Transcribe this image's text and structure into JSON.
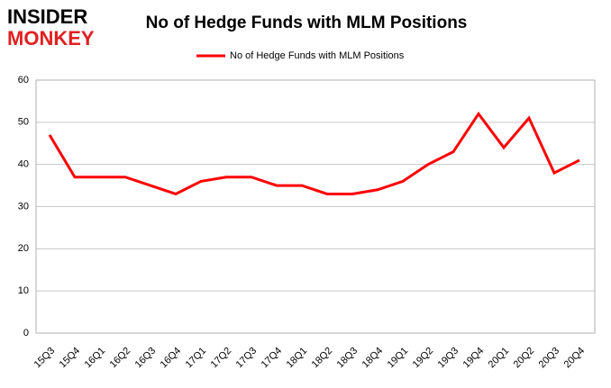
{
  "logo": {
    "line1": "INSIDER",
    "line2": "MONKEY"
  },
  "chart_data": {
    "type": "line",
    "title": "No of Hedge Funds with MLM Positions",
    "categories": [
      "15Q3",
      "15Q4",
      "16Q1",
      "16Q2",
      "16Q3",
      "16Q4",
      "17Q1",
      "17Q2",
      "17Q3",
      "17Q4",
      "18Q1",
      "18Q2",
      "18Q3",
      "18Q4",
      "19Q1",
      "19Q2",
      "19Q3",
      "19Q4",
      "20Q1",
      "20Q2",
      "20Q3",
      "20Q4"
    ],
    "series": [
      {
        "name": "No of Hedge Funds with MLM Positions",
        "color": "#ff0000",
        "values": [
          47,
          37,
          37,
          37,
          35,
          33,
          36,
          37,
          37,
          35,
          35,
          33,
          33,
          34,
          36,
          40,
          43,
          52,
          44,
          51,
          38,
          41
        ]
      }
    ],
    "ylim": [
      0,
      60
    ],
    "yticks": [
      0,
      10,
      20,
      30,
      40,
      50,
      60
    ],
    "grid": true,
    "legend": "top"
  }
}
